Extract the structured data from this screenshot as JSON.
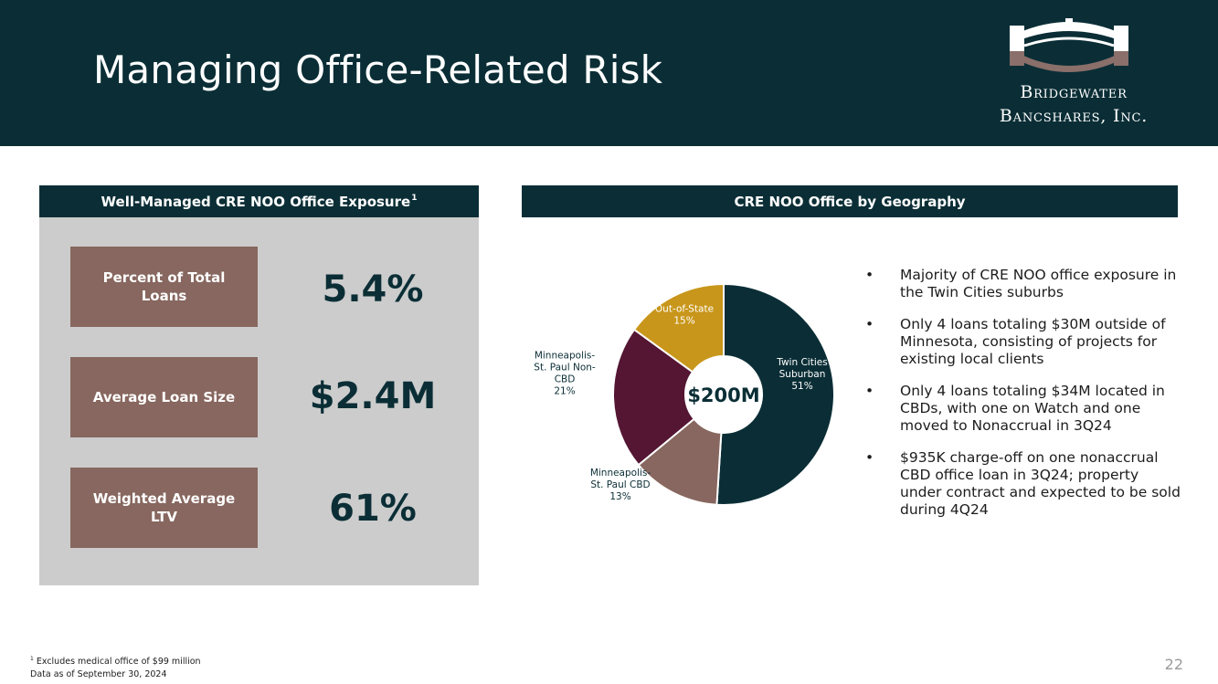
{
  "header": {
    "title": "Managing Office-Related Risk",
    "logo_line1": "Bridgewater",
    "logo_line2": "Bancshares, Inc."
  },
  "left_panel": {
    "title": "Well-Managed CRE NOO Office Exposure",
    "title_footnote_mark": "1",
    "metrics": [
      {
        "label": "Percent of Total Loans",
        "value": "5.4%"
      },
      {
        "label": "Average Loan Size",
        "value": "$2.4M"
      },
      {
        "label": "Weighted Average LTV",
        "value": "61%"
      }
    ]
  },
  "right_panel": {
    "title": "CRE NOO Office by Geography",
    "bullets": [
      "Majority of CRE NOO office exposure in the Twin Cities suburbs",
      "Only 4 loans totaling $30M outside of Minnesota, consisting of projects for existing local clients",
      "Only 4 loans totaling $34M located in CBDs, with one on Watch and one moved to Nonaccrual in 3Q24",
      "$935K charge-off on one nonaccrual CBD office loan in 3Q24; property under contract and expected to be sold during 4Q24"
    ]
  },
  "chart_data": {
    "type": "pie",
    "variant": "donut",
    "center_label": "$200M",
    "slices": [
      {
        "label": "Twin Cities Suburban",
        "value": 51,
        "value_label": "51%",
        "label_lines": [
          "Twin Cities",
          "Suburban",
          "51%"
        ],
        "color": "#0b2e36"
      },
      {
        "label": "Minneapolis-St. Paul CBD",
        "value": 13,
        "value_label": "13%",
        "label_lines": [
          "Minneapolis-",
          "St. Paul CBD",
          "13%"
        ],
        "color": "#87675f"
      },
      {
        "label": "Minneapolis-St. Paul Non-CBD",
        "value": 21,
        "value_label": "21%",
        "label_lines": [
          "Minneapolis-",
          "St. Paul Non-",
          "CBD",
          "21%"
        ],
        "color": "#541633"
      },
      {
        "label": "Out-of-State",
        "value": 15,
        "value_label": "15%",
        "label_lines": [
          "Out-of-State",
          "15%"
        ],
        "color": "#c8961a"
      }
    ]
  },
  "footnotes": {
    "note1_mark": "1",
    "note1": "Excludes medical office of $99 million",
    "note2": "Data as of September 30, 2024"
  },
  "page_number": "22",
  "colors": {
    "navy": "#0b2e36",
    "mauve": "#87675f",
    "gray_panel": "#cccccc",
    "burgundy": "#541633",
    "gold": "#c8961a"
  }
}
